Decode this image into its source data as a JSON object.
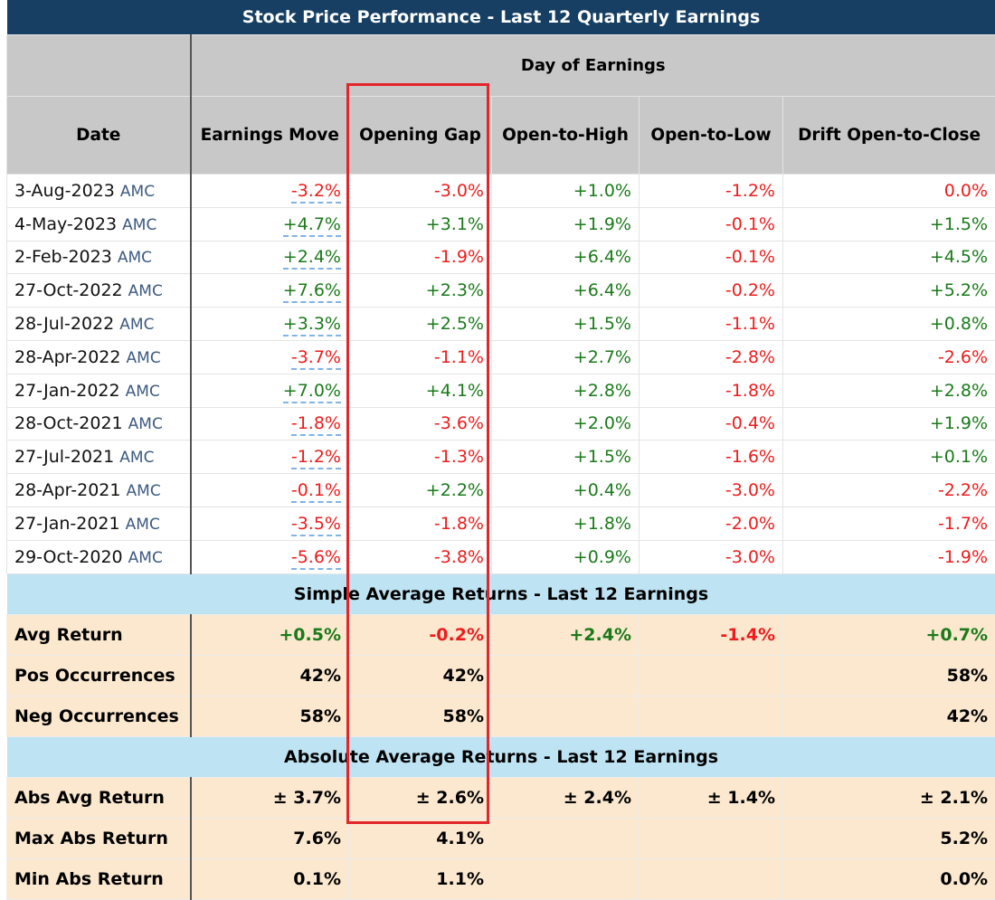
{
  "title": "Stock Price Performance - Last 12 Quarterly Earnings",
  "group_header": "Day of Earnings",
  "columns": [
    "Date",
    "Earnings Move",
    "Opening Gap",
    "Open-to-High",
    "Open-to-Low",
    "Drift Open-to-Close"
  ],
  "rows": [
    {
      "date": "3-Aug-2023",
      "timing": "AMC",
      "values": [
        "-3.2%",
        "-3.0%",
        "+1.0%",
        "-1.2%",
        "0.0%"
      ]
    },
    {
      "date": "4-May-2023",
      "timing": "AMC",
      "values": [
        "+4.7%",
        "+3.1%",
        "+1.9%",
        "-0.1%",
        "+1.5%"
      ]
    },
    {
      "date": "2-Feb-2023",
      "timing": "AMC",
      "values": [
        "+2.4%",
        "-1.9%",
        "+6.4%",
        "-0.1%",
        "+4.5%"
      ]
    },
    {
      "date": "27-Oct-2022",
      "timing": "AMC",
      "values": [
        "+7.6%",
        "+2.3%",
        "+6.4%",
        "-0.2%",
        "+5.2%"
      ]
    },
    {
      "date": "28-Jul-2022",
      "timing": "AMC",
      "values": [
        "+3.3%",
        "+2.5%",
        "+1.5%",
        "-1.1%",
        "+0.8%"
      ]
    },
    {
      "date": "28-Apr-2022",
      "timing": "AMC",
      "values": [
        "-3.7%",
        "-1.1%",
        "+2.7%",
        "-2.8%",
        "-2.6%"
      ]
    },
    {
      "date": "27-Jan-2022",
      "timing": "AMC",
      "values": [
        "+7.0%",
        "+4.1%",
        "+2.8%",
        "-1.8%",
        "+2.8%"
      ]
    },
    {
      "date": "28-Oct-2021",
      "timing": "AMC",
      "values": [
        "-1.8%",
        "-3.6%",
        "+2.0%",
        "-0.4%",
        "+1.9%"
      ]
    },
    {
      "date": "27-Jul-2021",
      "timing": "AMC",
      "values": [
        "-1.2%",
        "-1.3%",
        "+1.5%",
        "-1.6%",
        "+0.1%"
      ]
    },
    {
      "date": "28-Apr-2021",
      "timing": "AMC",
      "values": [
        "-0.1%",
        "+2.2%",
        "+0.4%",
        "-3.0%",
        "-2.2%"
      ]
    },
    {
      "date": "27-Jan-2021",
      "timing": "AMC",
      "values": [
        "-3.5%",
        "-1.8%",
        "+1.8%",
        "-2.0%",
        "-1.7%"
      ]
    },
    {
      "date": "29-Oct-2020",
      "timing": "AMC",
      "values": [
        "-5.6%",
        "-3.8%",
        "+0.9%",
        "-3.0%",
        "-1.9%"
      ]
    }
  ],
  "simple_section": "Simple Average Returns - Last 12 Earnings",
  "simple_rows": [
    {
      "label": "Avg Return",
      "values": [
        "+0.5%",
        "-0.2%",
        "+2.4%",
        "-1.4%",
        "+0.7%"
      ],
      "colored": true
    },
    {
      "label": "Pos Occurrences",
      "values": [
        "42%",
        "42%",
        "",
        "",
        "58%"
      ]
    },
    {
      "label": "Neg Occurrences",
      "values": [
        "58%",
        "58%",
        "",
        "",
        "42%"
      ]
    }
  ],
  "abs_section": "Absolute Average Returns - Last 12 Earnings",
  "abs_rows": [
    {
      "label": "Abs Avg Return",
      "values": [
        "± 3.7%",
        "± 2.6%",
        "± 2.4%",
        "± 1.4%",
        "± 2.1%"
      ]
    },
    {
      "label": "Max Abs Return",
      "values": [
        "7.6%",
        "4.1%",
        "",
        "",
        "5.2%"
      ]
    },
    {
      "label": "Min Abs Return",
      "values": [
        "0.1%",
        "1.1%",
        "",
        "",
        "0.0%"
      ]
    }
  ],
  "colors": {
    "title_bg": "#163f63",
    "positive": "#1a7a1a",
    "negative": "#ee1c1c",
    "highlight_box": "#e3262b",
    "section_bg": "#bee3f2",
    "stat_bg": "#fbe8cf"
  }
}
